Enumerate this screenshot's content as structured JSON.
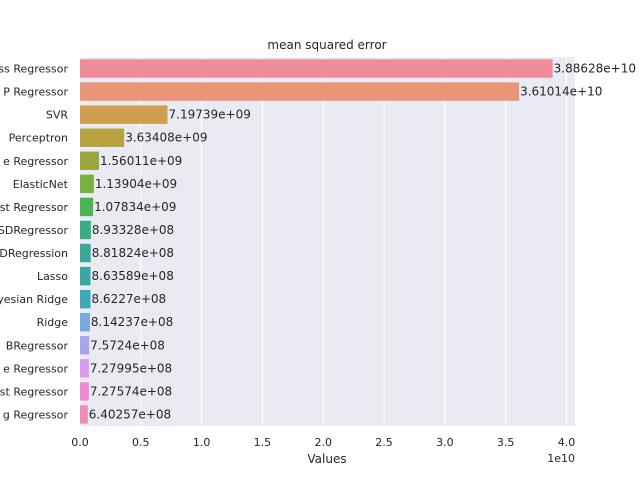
{
  "chart_data": {
    "type": "bar",
    "orientation": "horizontal",
    "title": "mean squared error",
    "xlabel": "Values",
    "ylabel": "",
    "x_offset_label": "1e10",
    "xlim": [
      0,
      4.07
    ],
    "xticks": [
      0.0,
      0.5,
      1.0,
      1.5,
      2.0,
      2.5,
      3.0,
      3.5,
      4.0
    ],
    "xtick_labels": [
      "0.0",
      "0.5",
      "1.0",
      "1.5",
      "2.0",
      "2.5",
      "3.0",
      "3.5",
      "4.0"
    ],
    "grid": true,
    "categories": [
      "ss Regressor",
      "P Regressor",
      "SVR",
      "Perceptron",
      "e Regressor",
      "ElasticNet",
      "st Regressor",
      "SDRegressor",
      "DRegression",
      "Lasso",
      "yesian Ridge",
      "Ridge",
      "BRegressor",
      "e Regressor",
      "st Regressor",
      "g Regressor"
    ],
    "values": [
      38862800000,
      36101400000,
      7197390000,
      3634080000,
      1560110000,
      1139040000,
      1078340000,
      893328000,
      881824000,
      863589000,
      862270000,
      814237000,
      757240000,
      727995000,
      727574000,
      640257000
    ],
    "value_labels": [
      "3.88628e+10",
      "3.61014e+10",
      "7.19739e+09",
      "3.63408e+09",
      "1.56011e+09",
      "1.13904e+09",
      "1.07834e+09",
      "8.93328e+08",
      "8.81824e+08",
      "8.63589e+08",
      "8.6227e+08",
      "8.14237e+08",
      "7.5724e+08",
      "7.27995e+08",
      "7.27574e+08",
      "6.40257e+08"
    ],
    "colors": [
      "#f08b98",
      "#e8957a",
      "#cf9f4e",
      "#b8a13f",
      "#9ca63e",
      "#7bb142",
      "#4fb354",
      "#39ad85",
      "#3ba89b",
      "#3aa6a6",
      "#3fa9b8",
      "#78a8e0",
      "#a7a6ec",
      "#d79beb",
      "#ef8ad2",
      "#f18bb5"
    ]
  }
}
